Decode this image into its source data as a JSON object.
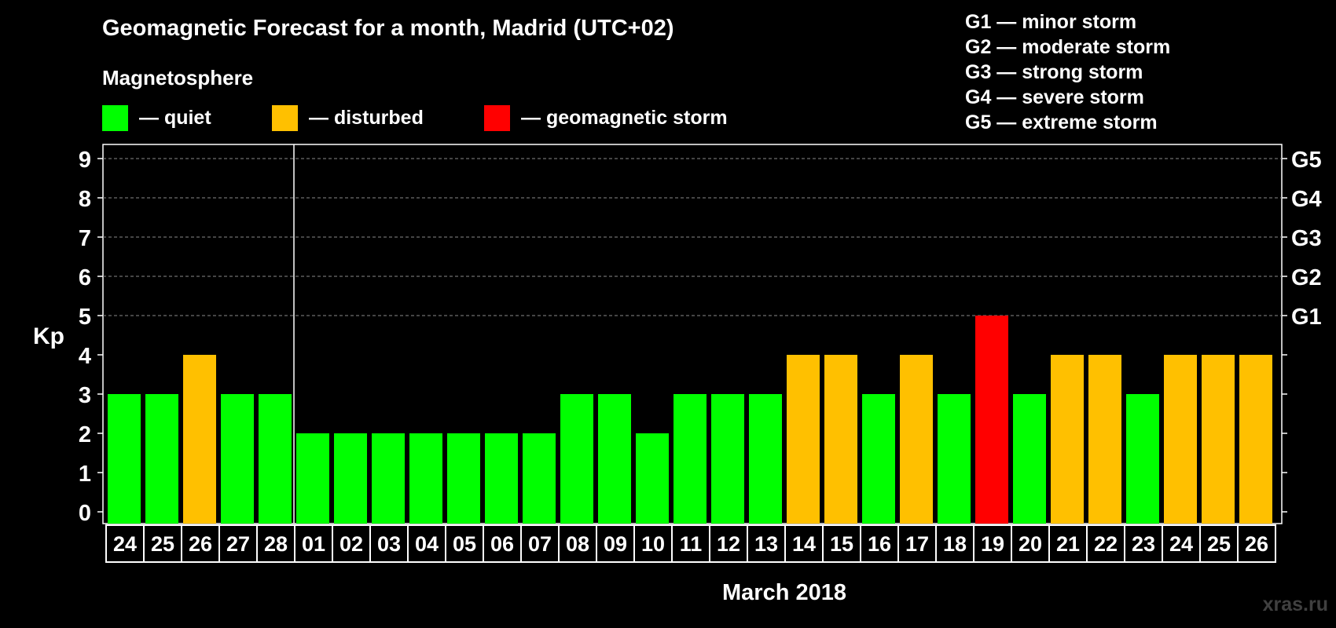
{
  "header": {
    "title": "Geomagnetic Forecast for a month, Madrid (UTC+02)",
    "subtitle": "Magnetosphere",
    "watermark": "xras.ru"
  },
  "legend": [
    {
      "label": "— quiet",
      "color": "#00ff00"
    },
    {
      "label": "— disturbed",
      "color": "#ffc000"
    },
    {
      "label": "— geomagnetic storm",
      "color": "#ff0000"
    }
  ],
  "storm_levels": [
    "G1 — minor storm",
    "G2 — moderate storm",
    "G3 — strong storm",
    "G4 — severe storm",
    "G5 — extreme storm"
  ],
  "chart_data": {
    "type": "bar",
    "title": "Geomagnetic Forecast for a month, Madrid (UTC+02)",
    "xlabel": "March 2018",
    "ylabel": "Kp",
    "ylim": [
      0,
      9
    ],
    "yticks": [
      0,
      1,
      2,
      3,
      4,
      5,
      6,
      7,
      8,
      9
    ],
    "right_axis_labels": [
      {
        "value": 5,
        "label": "G1"
      },
      {
        "value": 6,
        "label": "G2"
      },
      {
        "value": 7,
        "label": "G3"
      },
      {
        "value": 8,
        "label": "G4"
      },
      {
        "value": 9,
        "label": "G5"
      }
    ],
    "grid": true,
    "month_separator_after_index": 4,
    "categories": [
      "24",
      "25",
      "26",
      "27",
      "28",
      "01",
      "02",
      "03",
      "04",
      "05",
      "06",
      "07",
      "08",
      "09",
      "10",
      "11",
      "12",
      "13",
      "14",
      "15",
      "16",
      "17",
      "18",
      "19",
      "20",
      "21",
      "22",
      "23",
      "24",
      "25",
      "26"
    ],
    "values": [
      3,
      3,
      4,
      3,
      3,
      2,
      2,
      2,
      2,
      2,
      2,
      2,
      3,
      3,
      2,
      3,
      3,
      3,
      4,
      4,
      3,
      4,
      3,
      5,
      3,
      4,
      4,
      3,
      4,
      4,
      4
    ],
    "colors": {
      "quiet": "#00ff00",
      "disturbed": "#ffc000",
      "storm": "#ff0000"
    }
  }
}
